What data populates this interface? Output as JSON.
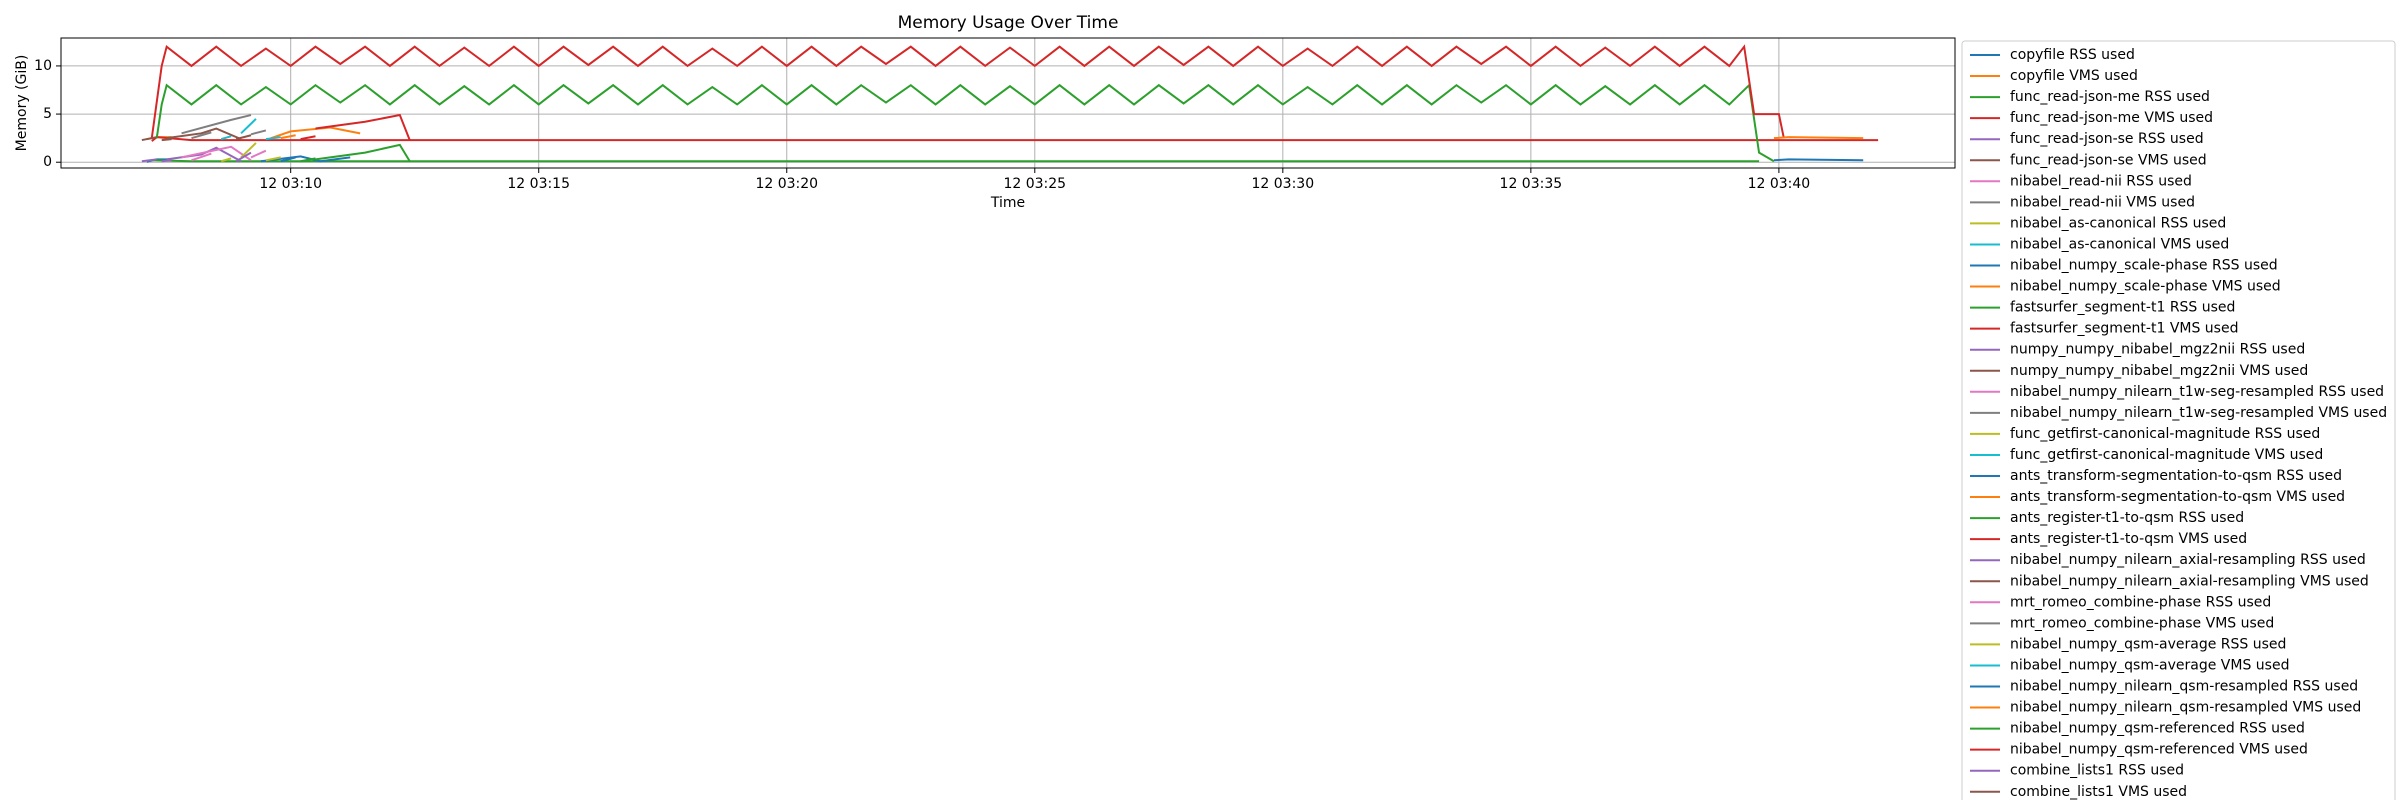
{
  "chart_data": {
    "type": "line",
    "title": "Memory Usage Over Time",
    "x_label": "Time",
    "y_label": "Memory (GiB)",
    "xlim": [
      5.37,
      43.55
    ],
    "xticks": [
      {
        "value": 10,
        "label": "12 03:10"
      },
      {
        "value": 15,
        "label": "12 03:15"
      },
      {
        "value": 20,
        "label": "12 03:20"
      },
      {
        "value": 25,
        "label": "12 03:25"
      },
      {
        "value": 30,
        "label": "12 03:30"
      },
      {
        "value": 35,
        "label": "12 03:35"
      },
      {
        "value": 40,
        "label": "12 03:40"
      }
    ],
    "ylim": [
      -0.6,
      12.9
    ],
    "yticks": [
      0,
      5,
      10
    ],
    "grid": true,
    "legend": "outside-right",
    "series": [
      {
        "name": "copyfile RSS used",
        "color": "#1f77b4",
        "x": [
          7.1,
          7.3,
          7.6
        ],
        "values": [
          0.05,
          0.3,
          0.3
        ]
      },
      {
        "name": "copyfile VMS used",
        "color": "#ff7f0e",
        "x": [
          7.1,
          7.3,
          7.6
        ],
        "values": [
          2.4,
          2.6,
          2.6
        ]
      },
      {
        "name": "func_read-json-me RSS used",
        "color": "#2ca02c",
        "x": [
          7.2,
          8,
          39.6
        ],
        "values": [
          0.2,
          0.1,
          0.1
        ]
      },
      {
        "name": "func_read-json-me VMS used",
        "color": "#d62728",
        "x": [
          7.2,
          7.3,
          8,
          42
        ],
        "values": [
          2.2,
          2.6,
          2.3,
          2.3
        ]
      },
      {
        "name": "func_read-json-se RSS used",
        "color": "#9467bd",
        "x": [
          7.5,
          8.2,
          8.5,
          9.0
        ],
        "values": [
          0.3,
          0.8,
          1.5,
          0.1
        ]
      },
      {
        "name": "func_read-json-se VMS used",
        "color": "#8c564b",
        "x": [
          7.5,
          8.2,
          8.5,
          9.0
        ],
        "values": [
          2.5,
          3.0,
          3.5,
          2.4
        ]
      },
      {
        "name": "nibabel_read-nii RSS used",
        "color": "#e377c2",
        "x": [
          7.8,
          8.8,
          9.2
        ],
        "values": [
          0.5,
          1.6,
          0.2
        ]
      },
      {
        "name": "nibabel_read-nii VMS used",
        "color": "#7f7f7f",
        "x": [
          7.8,
          8.8,
          9.2
        ],
        "values": [
          3.0,
          4.4,
          4.9
        ]
      },
      {
        "name": "nibabel_as-canonical RSS used",
        "color": "#bcbd22",
        "x": [
          9.0,
          9.3
        ],
        "values": [
          0.5,
          2.0
        ]
      },
      {
        "name": "nibabel_as-canonical VMS used",
        "color": "#17becf",
        "x": [
          9.0,
          9.3
        ],
        "values": [
          3.0,
          4.5
        ]
      },
      {
        "name": "nibabel_numpy_scale-phase RSS used",
        "color": "#1f77b4",
        "x": [
          9.4,
          10.2,
          10.6,
          11.2
        ],
        "values": [
          0.1,
          0.6,
          0.1,
          0.5
        ]
      },
      {
        "name": "nibabel_numpy_scale-phase VMS used",
        "color": "#ff7f0e",
        "x": [
          9.6,
          10.0,
          10.8,
          11.4
        ],
        "values": [
          2.5,
          3.2,
          3.6,
          3.0
        ]
      },
      {
        "name": "fastsurfer_segment-t1 RSS used",
        "color": "#2ca02c",
        "x": [
          7.3,
          7.4,
          7.5,
          8,
          8.5,
          9,
          9.5,
          10,
          10.5,
          11,
          11.5,
          12,
          12.5,
          13,
          13.5,
          14,
          14.5,
          15,
          15.5,
          16,
          16.5,
          17,
          17.5,
          18,
          18.5,
          19,
          19.5,
          20,
          20.5,
          21,
          21.5,
          22,
          22.5,
          23,
          23.5,
          24,
          24.5,
          25,
          25.5,
          26,
          26.5,
          27,
          27.5,
          28,
          28.5,
          29,
          29.5,
          30,
          30.5,
          31,
          31.5,
          32,
          32.5,
          33,
          33.5,
          34,
          34.5,
          35,
          35.5,
          36,
          36.5,
          37,
          37.5,
          38,
          38.5,
          39,
          39.4,
          39.6,
          39.9
        ],
        "values": [
          2.5,
          6,
          8,
          6,
          8,
          6,
          7.8,
          6,
          8,
          6.2,
          8,
          6,
          8,
          6,
          7.9,
          6,
          8,
          6,
          8,
          6.1,
          8,
          6,
          8,
          6,
          7.8,
          6,
          8,
          6,
          8,
          6,
          8,
          6.2,
          8,
          6,
          8,
          6,
          7.9,
          6,
          8,
          6,
          8,
          6,
          8,
          6.1,
          8,
          6,
          8,
          6,
          7.8,
          6,
          8,
          6,
          8,
          6,
          8,
          6.2,
          8,
          6,
          8,
          6,
          7.9,
          6,
          8,
          6,
          8,
          6,
          8,
          1,
          0.1
        ]
      },
      {
        "name": "fastsurfer_segment-t1 VMS used",
        "color": "#d62728",
        "x": [
          7.2,
          7.4,
          7.5,
          8,
          8.5,
          9,
          9.5,
          10,
          10.5,
          11,
          11.5,
          12,
          12.5,
          13,
          13.5,
          14,
          14.5,
          15,
          15.5,
          16,
          16.5,
          17,
          17.5,
          18,
          18.5,
          19,
          19.5,
          20,
          20.5,
          21,
          21.5,
          22,
          22.5,
          23,
          23.5,
          24,
          24.5,
          25,
          25.5,
          26,
          26.5,
          27,
          27.5,
          28,
          28.5,
          29,
          29.5,
          30,
          30.5,
          31,
          31.5,
          32,
          32.5,
          33,
          33.5,
          34,
          34.5,
          35,
          35.5,
          36,
          36.5,
          37,
          37.5,
          38,
          38.5,
          39,
          39.3,
          39.5,
          40.0,
          40.1
        ],
        "values": [
          2.5,
          10,
          12,
          10,
          12,
          10,
          11.8,
          10,
          12,
          10.2,
          12,
          10,
          12,
          10,
          11.9,
          10,
          12,
          10,
          12,
          10.1,
          12,
          10,
          12,
          10,
          11.8,
          10,
          12,
          10,
          12,
          10,
          12,
          10.2,
          12,
          10,
          12,
          10,
          11.9,
          10,
          12,
          10,
          12,
          10,
          12,
          10.1,
          12,
          10,
          12,
          10,
          11.8,
          10,
          12,
          10,
          12,
          10,
          12,
          10.2,
          12,
          10,
          12,
          10,
          11.9,
          10,
          12,
          10,
          12,
          10,
          12,
          5,
          5,
          2.5
        ]
      },
      {
        "name": "numpy_numpy_nibabel_mgz2nii RSS used",
        "color": "#9467bd",
        "x": [
          8.9,
          9.2
        ],
        "values": [
          0.1,
          1.0
        ]
      },
      {
        "name": "numpy_numpy_nibabel_mgz2nii VMS used",
        "color": "#8c564b",
        "x": [
          8.9,
          9.2
        ],
        "values": [
          2.4,
          2.8
        ]
      },
      {
        "name": "nibabel_numpy_nilearn_t1w-seg-resampled RSS used",
        "color": "#e377c2",
        "x": [
          9.2,
          9.5
        ],
        "values": [
          0.5,
          1.2
        ]
      },
      {
        "name": "nibabel_numpy_nilearn_t1w-seg-resampled VMS used",
        "color": "#7f7f7f",
        "x": [
          9.2,
          9.5
        ],
        "values": [
          2.9,
          3.3
        ]
      },
      {
        "name": "func_getfirst-canonical-magnitude RSS used",
        "color": "#bcbd22",
        "x": [
          9.5,
          9.8
        ],
        "values": [
          0.2,
          0.5
        ]
      },
      {
        "name": "func_getfirst-canonical-magnitude VMS used",
        "color": "#17becf",
        "x": [
          9.5,
          9.8
        ],
        "values": [
          2.4,
          2.6
        ]
      },
      {
        "name": "ants_transform-segmentation-to-qsm RSS used",
        "color": "#1f77b4",
        "x": [
          39.9,
          40.2,
          41.7
        ],
        "values": [
          0.2,
          0.3,
          0.2
        ]
      },
      {
        "name": "ants_transform-segmentation-to-qsm VMS used",
        "color": "#ff7f0e",
        "x": [
          39.9,
          40.2,
          41.7
        ],
        "values": [
          2.5,
          2.6,
          2.5
        ]
      },
      {
        "name": "ants_register-t1-to-qsm RSS used",
        "color": "#2ca02c",
        "x": [
          10.5,
          11.5,
          12.2,
          12.4
        ],
        "values": [
          0.3,
          1.0,
          1.8,
          0.1
        ]
      },
      {
        "name": "ants_register-t1-to-qsm VMS used",
        "color": "#d62728",
        "x": [
          10.5,
          11.5,
          12.2,
          12.4
        ],
        "values": [
          3.5,
          4.2,
          4.9,
          2.3
        ]
      },
      {
        "name": "nibabel_numpy_nilearn_axial-resampling RSS used",
        "color": "#9467bd",
        "x": [
          7.0,
          7.3
        ],
        "values": [
          0.1,
          0.3
        ]
      },
      {
        "name": "nibabel_numpy_nilearn_axial-resampling VMS used",
        "color": "#8c564b",
        "x": [
          7.0,
          7.3
        ],
        "values": [
          2.3,
          2.6
        ]
      },
      {
        "name": "mrt_romeo_combine-phase RSS used",
        "color": "#e377c2",
        "x": [
          8.0,
          8.4
        ],
        "values": [
          0.2,
          0.9
        ]
      },
      {
        "name": "mrt_romeo_combine-phase VMS used",
        "color": "#7f7f7f",
        "x": [
          8.0,
          8.4
        ],
        "values": [
          2.5,
          3.1
        ]
      },
      {
        "name": "nibabel_numpy_qsm-average RSS used",
        "color": "#bcbd22",
        "x": [
          8.6,
          8.8
        ],
        "values": [
          0.1,
          0.4
        ]
      },
      {
        "name": "nibabel_numpy_qsm-average VMS used",
        "color": "#17becf",
        "x": [
          8.6,
          8.8
        ],
        "values": [
          2.4,
          2.7
        ]
      },
      {
        "name": "nibabel_numpy_nilearn_qsm-resampled RSS used",
        "color": "#1f77b4",
        "x": [
          9.8,
          10.1
        ],
        "values": [
          0.1,
          0.5
        ]
      },
      {
        "name": "nibabel_numpy_nilearn_qsm-resampled VMS used",
        "color": "#ff7f0e",
        "x": [
          9.8,
          10.1
        ],
        "values": [
          2.5,
          2.8
        ]
      },
      {
        "name": "nibabel_numpy_qsm-referenced RSS used",
        "color": "#2ca02c",
        "x": [
          10.2,
          10.5
        ],
        "values": [
          0.1,
          0.4
        ]
      },
      {
        "name": "nibabel_numpy_qsm-referenced VMS used",
        "color": "#d62728",
        "x": [
          10.2,
          10.5
        ],
        "values": [
          2.4,
          2.7
        ]
      },
      {
        "name": "combine_lists1 RSS used",
        "color": "#9467bd",
        "x": [
          7.4,
          7.6
        ],
        "values": [
          0.1,
          0.2
        ]
      },
      {
        "name": "combine_lists1 VMS used",
        "color": "#8c564b",
        "x": [
          7.4,
          7.6
        ],
        "values": [
          2.3,
          2.4
        ]
      }
    ]
  }
}
